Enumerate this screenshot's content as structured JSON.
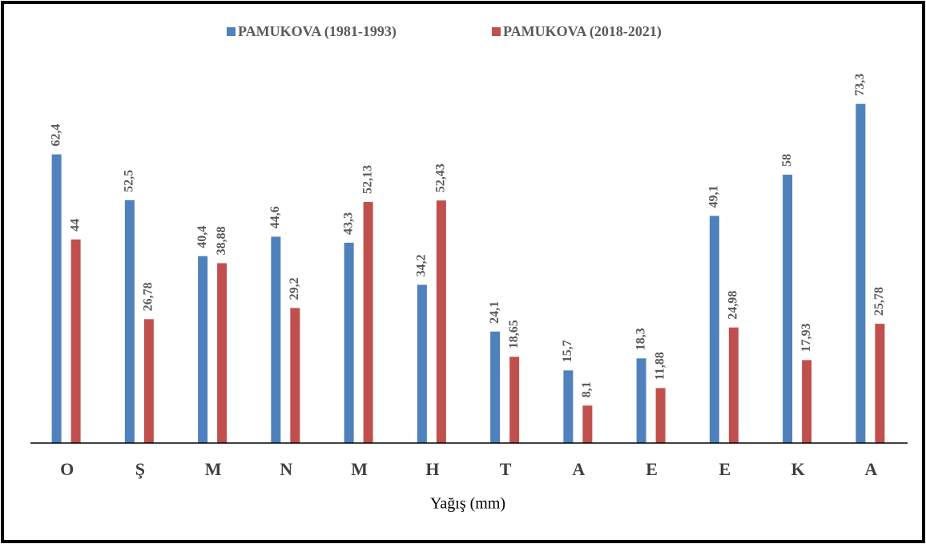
{
  "chart_data": {
    "type": "bar",
    "x_label": "Yağış (mm)",
    "categories": [
      "O",
      "Ş",
      "M",
      "N",
      "M",
      "H",
      "T",
      "A",
      "E",
      "E",
      "K",
      "A"
    ],
    "series": [
      {
        "name": "PAMUKOVA (1981-1993)",
        "color": "#4f81bd",
        "values": [
          62.4,
          52.5,
          40.4,
          44.6,
          43.3,
          34.2,
          24.1,
          15.7,
          18.3,
          49.1,
          58,
          73.3
        ],
        "value_labels": [
          "62,4",
          "52,5",
          "40,4",
          "44,6",
          "43,3",
          "34,2",
          "24,1",
          "15,7",
          "18,3",
          "49,1",
          "58",
          "73,3"
        ]
      },
      {
        "name": "PAMUKOVA (2018-2021)",
        "color": "#c0504d",
        "values": [
          44,
          26.78,
          38.88,
          29.2,
          52.13,
          52.43,
          18.65,
          8.1,
          11.88,
          24.98,
          17.93,
          25.78
        ],
        "value_labels": [
          "44",
          "26,78",
          "38,88",
          "29,2",
          "52,13",
          "52,43",
          "18,65",
          "8,1",
          "11,88",
          "24,98",
          "17,93",
          "25,78"
        ]
      }
    ],
    "ylim": [
      0,
      80
    ],
    "legend": "top"
  }
}
